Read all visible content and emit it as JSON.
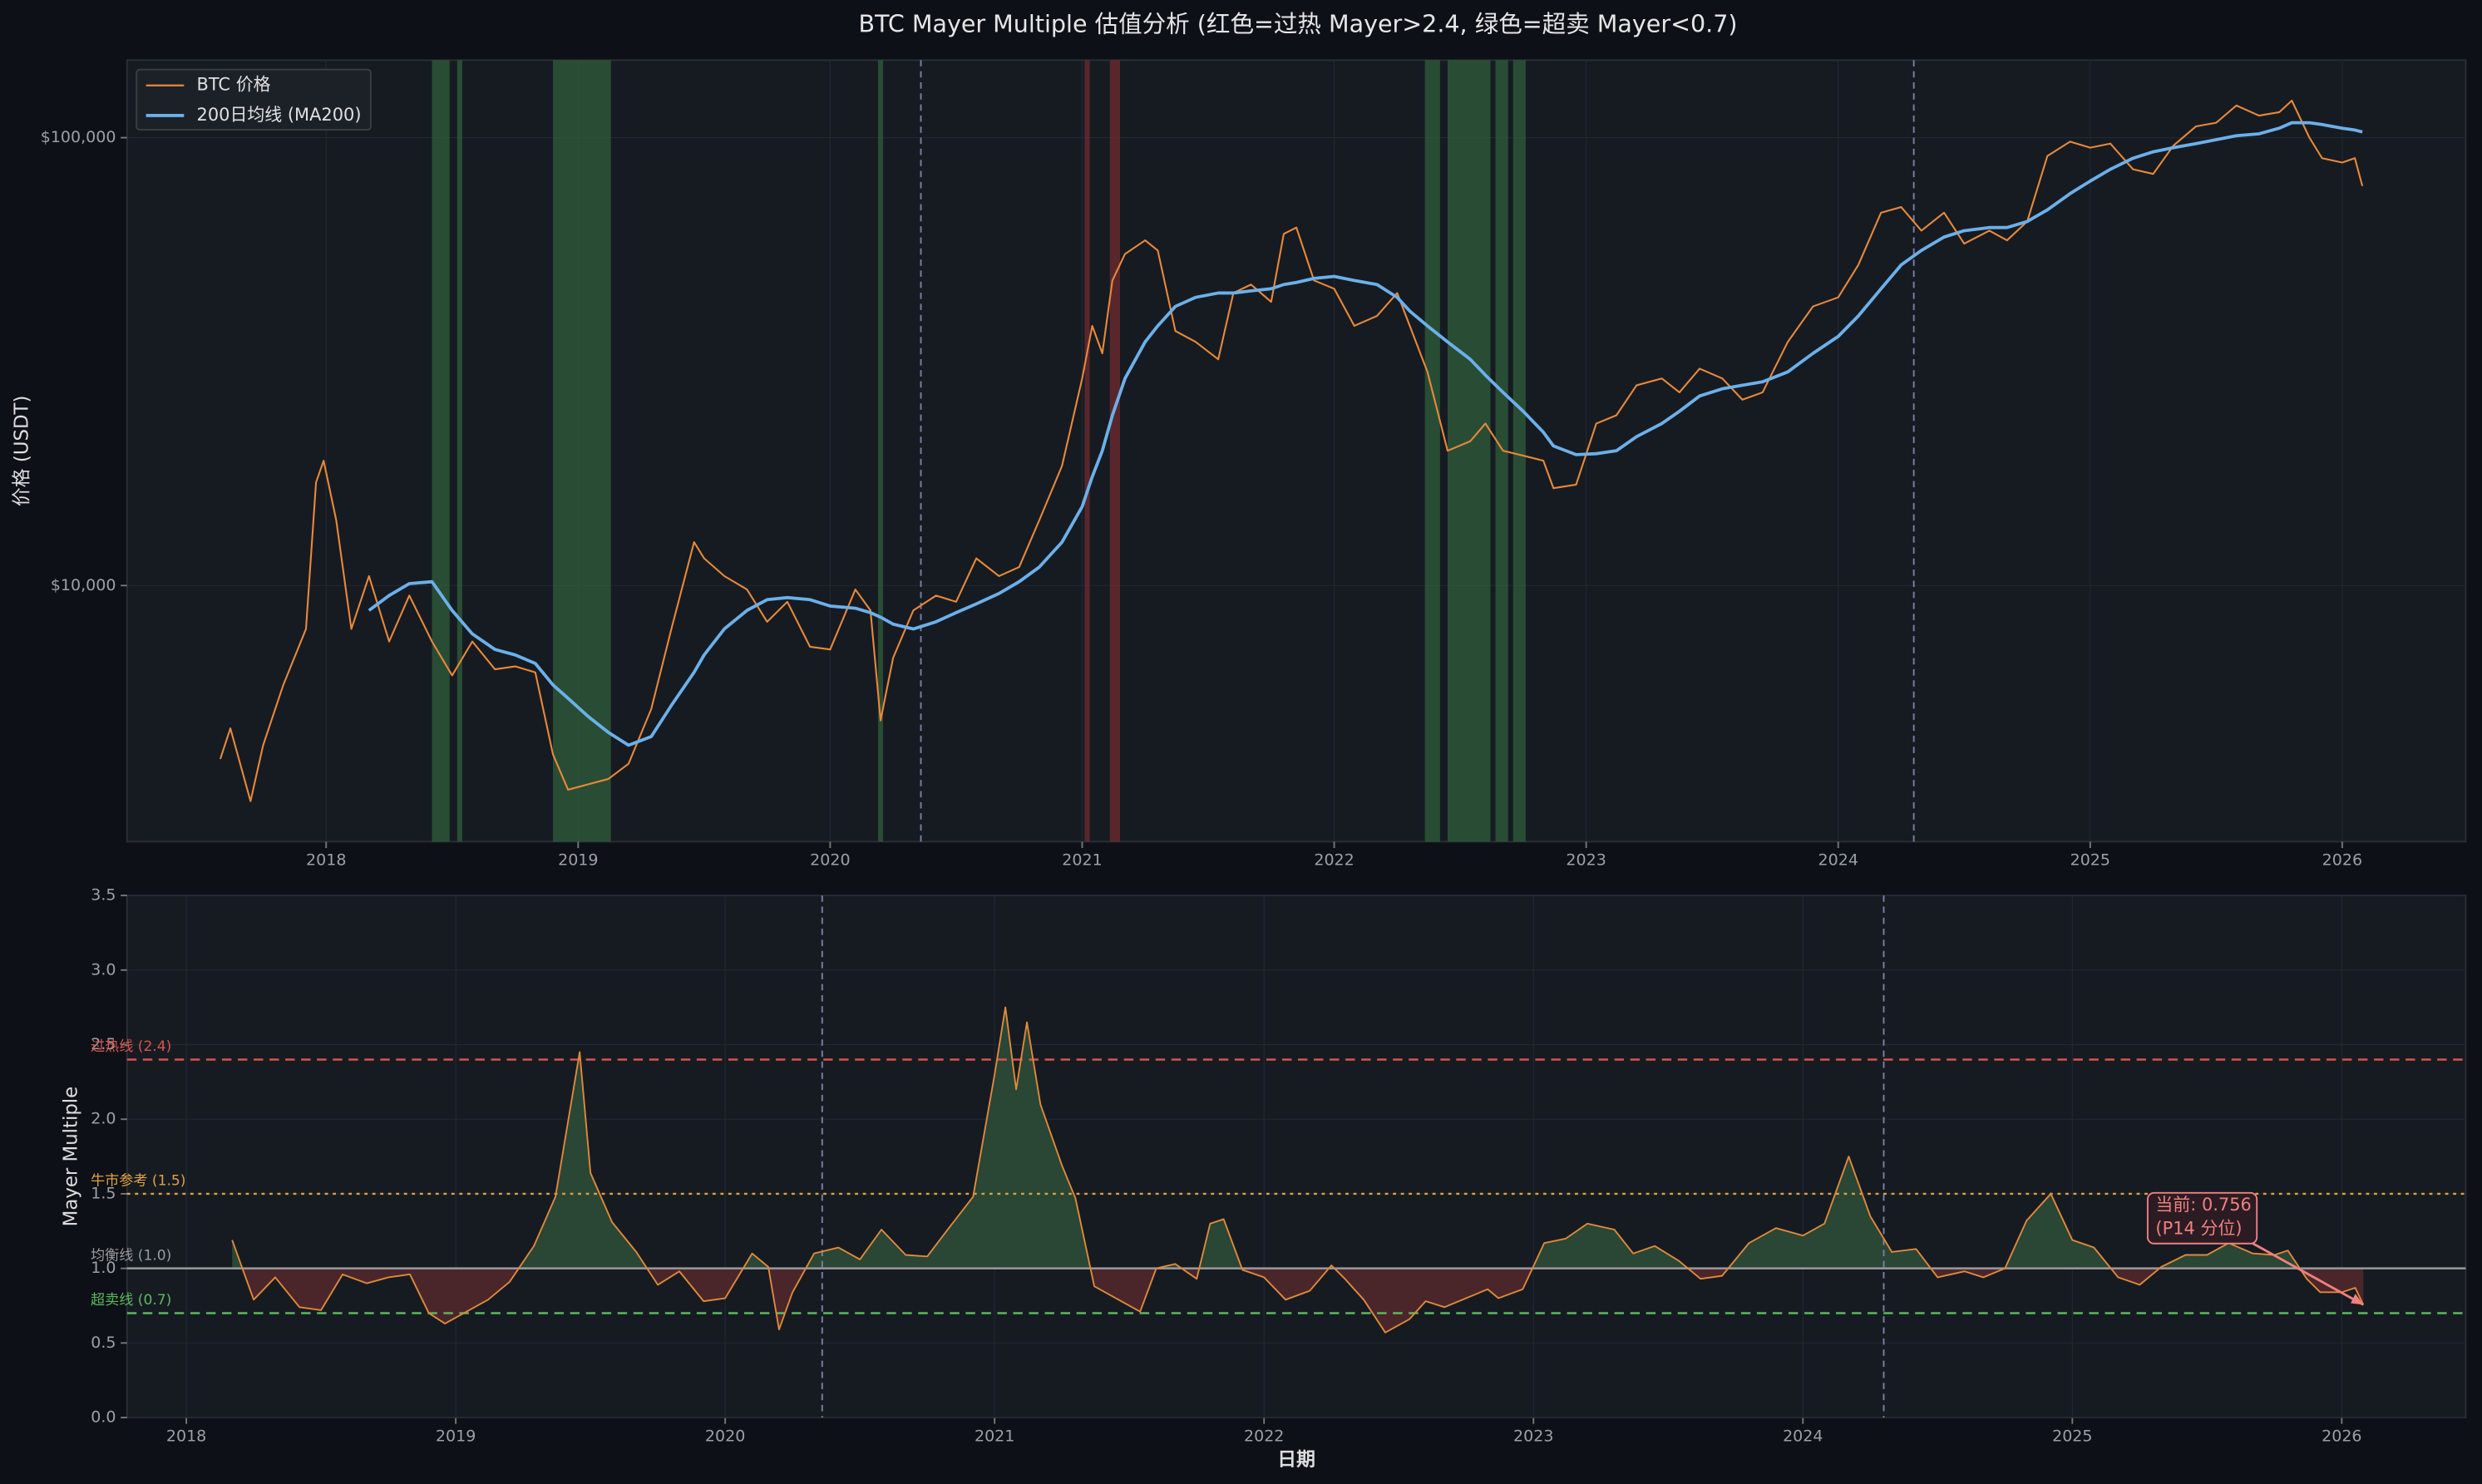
{
  "chart_data": [
    {
      "type": "line",
      "title": "BTC Mayer Multiple 估值分析 (红色=过热 Mayer>2.4, 绿色=超卖 Mayer<0.7)",
      "ylabel": "价格 (USDT)",
      "yscale": "log",
      "legend": "upper left",
      "grid": true,
      "x": [
        2017.58,
        2017.62,
        2017.7,
        2017.75,
        2017.83,
        2017.92,
        2017.96,
        2017.99,
        2018.04,
        2018.1,
        2018.17,
        2018.25,
        2018.33,
        2018.42,
        2018.5,
        2018.58,
        2018.67,
        2018.75,
        2018.83,
        2018.9,
        2018.96,
        2019.04,
        2019.12,
        2019.2,
        2019.29,
        2019.37,
        2019.46,
        2019.5,
        2019.58,
        2019.67,
        2019.75,
        2019.83,
        2019.92,
        2020.0,
        2020.1,
        2020.16,
        2020.2,
        2020.25,
        2020.33,
        2020.42,
        2020.5,
        2020.58,
        2020.67,
        2020.75,
        2020.83,
        2020.92,
        2021.0,
        2021.04,
        2021.08,
        2021.12,
        2021.17,
        2021.25,
        2021.3,
        2021.37,
        2021.45,
        2021.54,
        2021.6,
        2021.67,
        2021.75,
        2021.8,
        2021.85,
        2021.92,
        2022.0,
        2022.08,
        2022.17,
        2022.25,
        2022.3,
        2022.37,
        2022.45,
        2022.54,
        2022.6,
        2022.67,
        2022.75,
        2022.83,
        2022.87,
        2022.96,
        2023.04,
        2023.12,
        2023.2,
        2023.3,
        2023.37,
        2023.45,
        2023.54,
        2023.62,
        2023.7,
        2023.8,
        2023.9,
        2024.0,
        2024.08,
        2024.17,
        2024.25,
        2024.33,
        2024.42,
        2024.5,
        2024.6,
        2024.67,
        2024.75,
        2024.83,
        2024.92,
        2025.0,
        2025.08,
        2025.17,
        2025.25,
        2025.33,
        2025.42,
        2025.5,
        2025.58,
        2025.67,
        2025.75,
        2025.8,
        2025.87,
        2025.92,
        2026.0,
        2026.05,
        2026.08
      ],
      "series": [
        {
          "name": "BTC 价格",
          "color": "#e8893a",
          "values": [
            4100,
            4800,
            3300,
            4400,
            6000,
            8000,
            17000,
            19000,
            14000,
            8000,
            10500,
            7500,
            9500,
            7500,
            6300,
            7500,
            6500,
            6600,
            6400,
            4200,
            3500,
            3600,
            3700,
            4000,
            5300,
            8000,
            12500,
            11500,
            10500,
            9800,
            8300,
            9200,
            7300,
            7200,
            9800,
            8800,
            5000,
            6900,
            8800,
            9500,
            9200,
            11500,
            10500,
            11000,
            14000,
            18500,
            29000,
            38000,
            33000,
            48000,
            55000,
            59000,
            56000,
            37000,
            35000,
            32000,
            45000,
            47000,
            43000,
            61000,
            63000,
            48000,
            46000,
            38000,
            40000,
            45000,
            38000,
            30000,
            20000,
            21000,
            23000,
            20000,
            19500,
            19000,
            16500,
            16800,
            23000,
            24000,
            28000,
            29000,
            27000,
            30500,
            29000,
            26000,
            27000,
            35000,
            42000,
            44000,
            52000,
            68000,
            70000,
            62000,
            68000,
            58000,
            62000,
            59000,
            65000,
            91000,
            98000,
            95000,
            97000,
            85000,
            83000,
            96000,
            106000,
            108000,
            118000,
            112000,
            114000,
            121000,
            100000,
            90000,
            88000,
            90000,
            78000
          ]
        },
        {
          "name": "200日均线 (MA200)",
          "color": "#6cb0ea",
          "values": [
            null,
            null,
            null,
            null,
            null,
            null,
            null,
            null,
            null,
            null,
            8800,
            9500,
            10100,
            10200,
            8800,
            7800,
            7200,
            7000,
            6700,
            6000,
            5600,
            5100,
            4700,
            4400,
            4600,
            5400,
            6400,
            7000,
            8000,
            8800,
            9300,
            9400,
            9300,
            9000,
            8900,
            8700,
            8500,
            8200,
            8000,
            8300,
            8700,
            9100,
            9600,
            10200,
            11000,
            12500,
            15000,
            17500,
            20000,
            24000,
            29000,
            35000,
            38000,
            42000,
            44000,
            45000,
            45000,
            45500,
            46000,
            47000,
            47500,
            48500,
            49000,
            48000,
            47000,
            44000,
            41000,
            38000,
            35000,
            32000,
            29500,
            27000,
            24500,
            22000,
            20500,
            19600,
            19700,
            20000,
            21500,
            23000,
            24500,
            26500,
            27500,
            28000,
            28500,
            30000,
            33000,
            36000,
            40000,
            46000,
            52000,
            56000,
            60000,
            62000,
            63000,
            63000,
            65000,
            69000,
            75000,
            80000,
            85000,
            90000,
            93000,
            95000,
            97000,
            99000,
            101000,
            102000,
            105000,
            108000,
            108000,
            107000,
            105000,
            104000,
            103000
          ]
        }
      ],
      "xlim": [
        2017.21,
        2026.49
      ],
      "xticks": [
        2018,
        2019,
        2020,
        2021,
        2022,
        2023,
        2024,
        2025,
        2026
      ],
      "ylim": [
        2680,
        149000
      ],
      "yticks": [
        {
          "value": 10000,
          "label": "$10,000"
        },
        {
          "value": 100000,
          "label": "$100,000"
        }
      ],
      "spans": [
        {
          "start": 2018.42,
          "end": 2018.49,
          "color": "#2e5a3a"
        },
        {
          "start": 2018.52,
          "end": 2018.54,
          "color": "#2e5a3a"
        },
        {
          "start": 2018.9,
          "end": 2019.13,
          "color": "#2e5a3a"
        },
        {
          "start": 2020.19,
          "end": 2020.21,
          "color": "#2e5a3a"
        },
        {
          "start": 2021.01,
          "end": 2021.03,
          "color": "#6a2a2e"
        },
        {
          "start": 2021.11,
          "end": 2021.15,
          "color": "#6a2a2e"
        },
        {
          "start": 2022.36,
          "end": 2022.42,
          "color": "#2e5a3a"
        },
        {
          "start": 2022.45,
          "end": 2022.62,
          "color": "#2e5a3a"
        },
        {
          "start": 2022.64,
          "end": 2022.69,
          "color": "#2e5a3a"
        },
        {
          "start": 2022.71,
          "end": 2022.76,
          "color": "#2e5a3a"
        }
      ],
      "vlines": [
        2020.36,
        2024.3
      ]
    },
    {
      "type": "area",
      "ylabel": "Mayer Multiple",
      "xlabel": "日期",
      "grid": true,
      "x": [
        2018.17,
        2018.25,
        2018.33,
        2018.42,
        2018.5,
        2018.58,
        2018.67,
        2018.75,
        2018.83,
        2018.9,
        2018.96,
        2019.04,
        2019.12,
        2019.2,
        2019.29,
        2019.37,
        2019.46,
        2019.5,
        2019.58,
        2019.67,
        2019.75,
        2019.83,
        2019.92,
        2020.0,
        2020.1,
        2020.16,
        2020.2,
        2020.25,
        2020.33,
        2020.42,
        2020.5,
        2020.58,
        2020.67,
        2020.75,
        2020.83,
        2020.92,
        2021.0,
        2021.04,
        2021.08,
        2021.12,
        2021.17,
        2021.25,
        2021.3,
        2021.37,
        2021.45,
        2021.54,
        2021.6,
        2021.67,
        2021.75,
        2021.8,
        2021.85,
        2021.92,
        2022.0,
        2022.08,
        2022.17,
        2022.25,
        2022.3,
        2022.37,
        2022.45,
        2022.54,
        2022.6,
        2022.67,
        2022.75,
        2022.83,
        2022.87,
        2022.96,
        2023.04,
        2023.12,
        2023.2,
        2023.3,
        2023.37,
        2023.45,
        2023.54,
        2023.62,
        2023.7,
        2023.8,
        2023.9,
        2024.0,
        2024.08,
        2024.17,
        2024.25,
        2024.33,
        2024.42,
        2024.5,
        2024.6,
        2024.67,
        2024.75,
        2024.83,
        2024.92,
        2025.0,
        2025.08,
        2025.17,
        2025.25,
        2025.33,
        2025.42,
        2025.5,
        2025.58,
        2025.67,
        2025.75,
        2025.8,
        2025.87,
        2025.92,
        2026.0,
        2026.05,
        2026.08
      ],
      "values": [
        1.19,
        0.79,
        0.94,
        0.74,
        0.72,
        0.96,
        0.9,
        0.94,
        0.96,
        0.7,
        0.63,
        0.71,
        0.79,
        0.91,
        1.15,
        1.48,
        2.45,
        1.64,
        1.31,
        1.11,
        0.89,
        0.98,
        0.78,
        0.8,
        1.1,
        1.01,
        0.59,
        0.84,
        1.1,
        1.14,
        1.06,
        1.26,
        1.09,
        1.08,
        1.27,
        1.48,
        2.3,
        2.75,
        2.2,
        2.65,
        2.1,
        1.69,
        1.47,
        0.88,
        0.8,
        0.71,
        1.0,
        1.03,
        0.93,
        1.3,
        1.33,
        0.99,
        0.94,
        0.79,
        0.85,
        1.02,
        0.93,
        0.79,
        0.57,
        0.66,
        0.78,
        0.74,
        0.8,
        0.86,
        0.8,
        0.86,
        1.17,
        1.2,
        1.3,
        1.26,
        1.1,
        1.15,
        1.05,
        0.93,
        0.95,
        1.17,
        1.27,
        1.22,
        1.3,
        1.75,
        1.35,
        1.11,
        1.13,
        0.94,
        0.98,
        0.94,
        1.0,
        1.32,
        1.5,
        1.19,
        1.14,
        0.94,
        0.89,
        1.01,
        1.09,
        1.09,
        1.17,
        1.1,
        1.09,
        1.12,
        0.93,
        0.84,
        0.84,
        0.87,
        0.756
      ],
      "color": "#e0893a",
      "fill_baseline": 1,
      "above_color": "#2a4634",
      "below_color": "#4a262b",
      "xlim": [
        2017.78,
        2026.46
      ],
      "xticks": [
        2018,
        2019,
        2020,
        2021,
        2022,
        2023,
        2024,
        2025,
        2026
      ],
      "ylim": [
        0,
        3.5
      ],
      "yticks": [
        {
          "value": 0,
          "label": "0.0"
        },
        0.5,
        {
          "value": 1,
          "label": "1.0"
        },
        1.5,
        {
          "value": 2,
          "label": "2.0"
        },
        2.5,
        {
          "value": 3,
          "label": "3.0"
        },
        3.5
      ],
      "hlines": [
        {
          "value": 2.4,
          "label": "过热线 (2.4)",
          "color": "#d9534f",
          "style": "dashed"
        },
        {
          "value": 1.5,
          "label": "牛市参考 (1.5)",
          "color": "#e0a040",
          "style": "dotted"
        },
        {
          "value": 1,
          "label": "均衡线 (1.0)",
          "color": "#9a9a9a",
          "style": "solid"
        },
        {
          "value": 0.7,
          "label": "超卖线 (0.7)",
          "color": "#5cb85c",
          "style": "dashed"
        }
      ],
      "vlines": [
        2020.36,
        2024.3
      ],
      "annotation": {
        "lines": [
          "当前: 0.756",
          "(P14 分位)"
        ],
        "color": "#f08080"
      }
    }
  ]
}
